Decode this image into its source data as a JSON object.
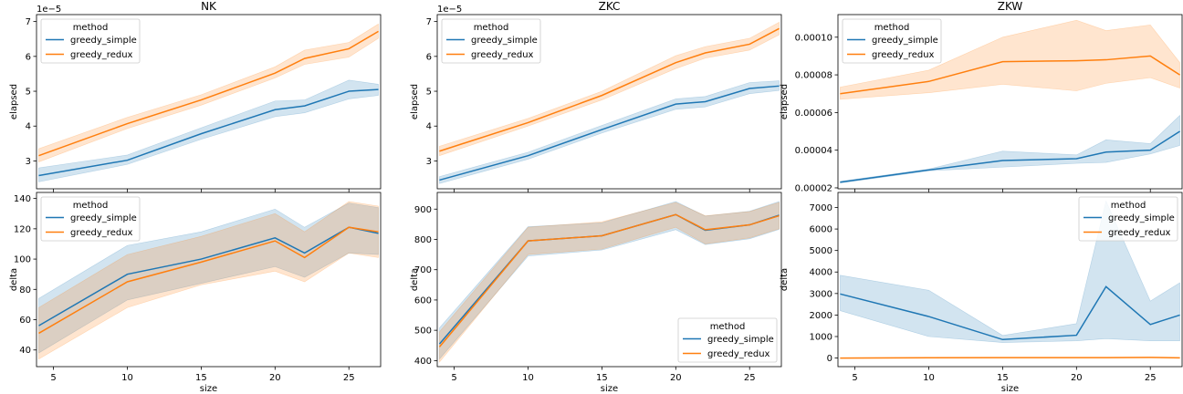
{
  "chart_data": [
    {
      "type": "line",
      "column": "NK",
      "row": "elapsed",
      "title": "NK",
      "xlabel": "",
      "ylabel": "elapsed",
      "offset_text": "1e−5",
      "xlim": [
        3.85,
        27.15
      ],
      "ylim": [
        2.2,
        7.2
      ],
      "yticks": [
        3,
        4,
        5,
        6,
        7
      ],
      "ytick_labels": [
        "3",
        "4",
        "5",
        "6",
        "7"
      ],
      "legend": {
        "title": "method",
        "position": "upper left"
      },
      "x": [
        4,
        10,
        15,
        20,
        22,
        25,
        27
      ],
      "series": [
        {
          "name": "greedy_simple",
          "color": "#1f77b4",
          "values": [
            2.58,
            3.02,
            3.78,
            4.47,
            4.58,
            5.0,
            5.05
          ],
          "lower": [
            2.4,
            2.9,
            3.62,
            4.27,
            4.38,
            4.78,
            4.88
          ],
          "upper": [
            2.8,
            3.17,
            3.95,
            4.72,
            4.75,
            5.32,
            5.2
          ]
        },
        {
          "name": "greedy_redux",
          "color": "#ff7f0e",
          "values": [
            3.15,
            4.07,
            4.75,
            5.52,
            5.94,
            6.22,
            6.72
          ],
          "lower": [
            2.97,
            3.93,
            4.6,
            5.38,
            5.77,
            5.98,
            6.52
          ],
          "upper": [
            3.35,
            4.25,
            4.9,
            5.7,
            6.18,
            6.4,
            6.93
          ]
        }
      ]
    },
    {
      "type": "line",
      "column": "ZKC",
      "row": "elapsed",
      "title": "ZKC",
      "xlabel": "",
      "ylabel": "elapsed",
      "offset_text": "1e−5",
      "xlim": [
        3.85,
        27.15
      ],
      "ylim": [
        2.2,
        7.2
      ],
      "yticks": [
        3,
        4,
        5,
        6,
        7
      ],
      "ytick_labels": [
        "3",
        "4",
        "5",
        "6",
        "7"
      ],
      "legend": {
        "title": "method",
        "position": "upper left"
      },
      "x": [
        4,
        10,
        15,
        20,
        22,
        25,
        27
      ],
      "series": [
        {
          "name": "greedy_simple",
          "color": "#1f77b4",
          "values": [
            2.45,
            3.15,
            3.9,
            4.63,
            4.7,
            5.08,
            5.15
          ],
          "lower": [
            2.35,
            3.05,
            3.8,
            4.48,
            4.55,
            4.93,
            5.02
          ],
          "upper": [
            2.55,
            3.25,
            4.02,
            4.78,
            4.85,
            5.25,
            5.3
          ]
        },
        {
          "name": "greedy_redux",
          "color": "#ff7f0e",
          "values": [
            3.28,
            4.1,
            4.88,
            5.82,
            6.1,
            6.35,
            6.8
          ],
          "lower": [
            3.15,
            4.0,
            4.75,
            5.65,
            5.95,
            6.18,
            6.62
          ],
          "upper": [
            3.42,
            4.22,
            5.0,
            6.02,
            6.28,
            6.52,
            6.98
          ]
        }
      ]
    },
    {
      "type": "line",
      "column": "ZKW",
      "row": "elapsed",
      "title": "ZKW",
      "xlabel": "",
      "ylabel": "elapsed",
      "xlim": [
        3.85,
        27.15
      ],
      "ylim": [
        1.95e-05,
        0.000112
      ],
      "yticks": [
        2e-05,
        4e-05,
        6e-05,
        8e-05,
        0.0001
      ],
      "ytick_labels": [
        "0.00002",
        "0.00004",
        "0.00006",
        "0.00008",
        "0.00010"
      ],
      "legend": {
        "title": "method",
        "position": "upper left"
      },
      "x": [
        4,
        10,
        15,
        20,
        22,
        25,
        27
      ],
      "series": [
        {
          "name": "greedy_simple",
          "color": "#1f77b4",
          "values": [
            2.3e-05,
            2.95e-05,
            3.45e-05,
            3.55e-05,
            3.9e-05,
            4e-05,
            5e-05
          ],
          "lower": [
            2.25e-05,
            2.9e-05,
            3.1e-05,
            3.3e-05,
            3.35e-05,
            3.8e-05,
            4.25e-05
          ],
          "upper": [
            2.35e-05,
            3e-05,
            3.95e-05,
            3.75e-05,
            4.55e-05,
            4.35e-05,
            5.85e-05
          ]
        },
        {
          "name": "greedy_redux",
          "color": "#ff7f0e",
          "values": [
            7e-05,
            7.65e-05,
            8.7e-05,
            8.75e-05,
            8.8e-05,
            9e-05,
            8e-05
          ],
          "lower": [
            6.7e-05,
            7.05e-05,
            7.5e-05,
            7.15e-05,
            7.55e-05,
            7.85e-05,
            7.3e-05
          ],
          "upper": [
            7.35e-05,
            8.25e-05,
            0.0001,
            0.000109,
            0.0001035,
            0.0001065,
            8.65e-05
          ]
        }
      ]
    },
    {
      "type": "line",
      "column": "NK",
      "row": "delta",
      "title": "",
      "xlabel": "size",
      "ylabel": "delta",
      "xlim": [
        3.85,
        27.15
      ],
      "ylim": [
        29,
        144
      ],
      "yticks": [
        40,
        60,
        80,
        100,
        120,
        140
      ],
      "ytick_labels": [
        "40",
        "60",
        "80",
        "100",
        "120",
        "140"
      ],
      "xticks": [
        5,
        10,
        15,
        20,
        25
      ],
      "xtick_labels": [
        "5",
        "10",
        "15",
        "20",
        "25"
      ],
      "legend": {
        "title": "method",
        "position": "upper left"
      },
      "x": [
        4,
        10,
        15,
        20,
        22,
        25,
        27
      ],
      "series": [
        {
          "name": "greedy_simple",
          "color": "#1f77b4",
          "values": [
            56,
            90,
            100,
            114,
            104,
            121,
            117
          ],
          "lower": [
            38,
            73,
            84,
            95,
            88,
            104,
            103
          ],
          "upper": [
            74,
            109,
            118,
            133,
            121,
            137,
            134
          ]
        },
        {
          "name": "greedy_redux",
          "color": "#ff7f0e",
          "values": [
            51,
            85,
            98,
            112,
            101,
            121,
            118
          ],
          "lower": [
            34,
            68,
            83,
            92,
            85,
            104,
            101
          ],
          "upper": [
            68,
            103,
            115,
            130,
            118,
            138,
            135
          ]
        }
      ]
    },
    {
      "type": "line",
      "column": "ZKC",
      "row": "delta",
      "title": "",
      "xlabel": "size",
      "ylabel": "delta",
      "xlim": [
        3.85,
        27.15
      ],
      "ylim": [
        380,
        955
      ],
      "yticks": [
        400,
        500,
        600,
        700,
        800,
        900
      ],
      "ytick_labels": [
        "400",
        "500",
        "600",
        "700",
        "800",
        "900"
      ],
      "xticks": [
        5,
        10,
        15,
        20,
        25
      ],
      "xtick_labels": [
        "5",
        "10",
        "15",
        "20",
        "25"
      ],
      "legend": {
        "title": "method",
        "position": "lower right"
      },
      "x": [
        4,
        10,
        15,
        20,
        22,
        25,
        27
      ],
      "series": [
        {
          "name": "greedy_simple",
          "color": "#1f77b4",
          "values": [
            455,
            795,
            812,
            882,
            830,
            848,
            880
          ],
          "lower": [
            405,
            745,
            765,
            832,
            783,
            802,
            833
          ],
          "upper": [
            508,
            842,
            855,
            925,
            877,
            893,
            925
          ]
        },
        {
          "name": "greedy_redux",
          "color": "#ff7f0e",
          "values": [
            445,
            795,
            812,
            882,
            832,
            848,
            878
          ],
          "lower": [
            395,
            750,
            768,
            840,
            785,
            805,
            835
          ],
          "upper": [
            495,
            840,
            858,
            922,
            878,
            892,
            922
          ]
        }
      ]
    },
    {
      "type": "line",
      "column": "ZKW",
      "row": "delta",
      "title": "",
      "xlabel": "size",
      "ylabel": "delta",
      "xlim": [
        3.85,
        27.15
      ],
      "ylim": [
        -400,
        7700
      ],
      "yticks": [
        0,
        1000,
        2000,
        3000,
        4000,
        5000,
        6000,
        7000
      ],
      "ytick_labels": [
        "0",
        "1000",
        "2000",
        "3000",
        "4000",
        "5000",
        "6000",
        "7000"
      ],
      "xticks": [
        5,
        10,
        15,
        20,
        25
      ],
      "xtick_labels": [
        "5",
        "10",
        "15",
        "20",
        "25"
      ],
      "legend": {
        "title": "method",
        "position": "upper right"
      },
      "x": [
        4,
        10,
        15,
        20,
        22,
        25,
        27
      ],
      "series": [
        {
          "name": "greedy_simple",
          "color": "#1f77b4",
          "values": [
            2980,
            1930,
            860,
            1060,
            3320,
            1560,
            2000
          ],
          "lower": [
            2200,
            1000,
            720,
            800,
            900,
            800,
            800
          ],
          "upper": [
            3850,
            3150,
            1050,
            1600,
            7300,
            2650,
            3500
          ]
        },
        {
          "name": "greedy_redux",
          "color": "#ff7f0e",
          "values": [
            0,
            15,
            20,
            20,
            20,
            30,
            10
          ],
          "lower": [
            -10,
            5,
            10,
            10,
            10,
            20,
            0
          ],
          "upper": [
            10,
            25,
            30,
            30,
            30,
            40,
            20
          ]
        }
      ]
    }
  ]
}
